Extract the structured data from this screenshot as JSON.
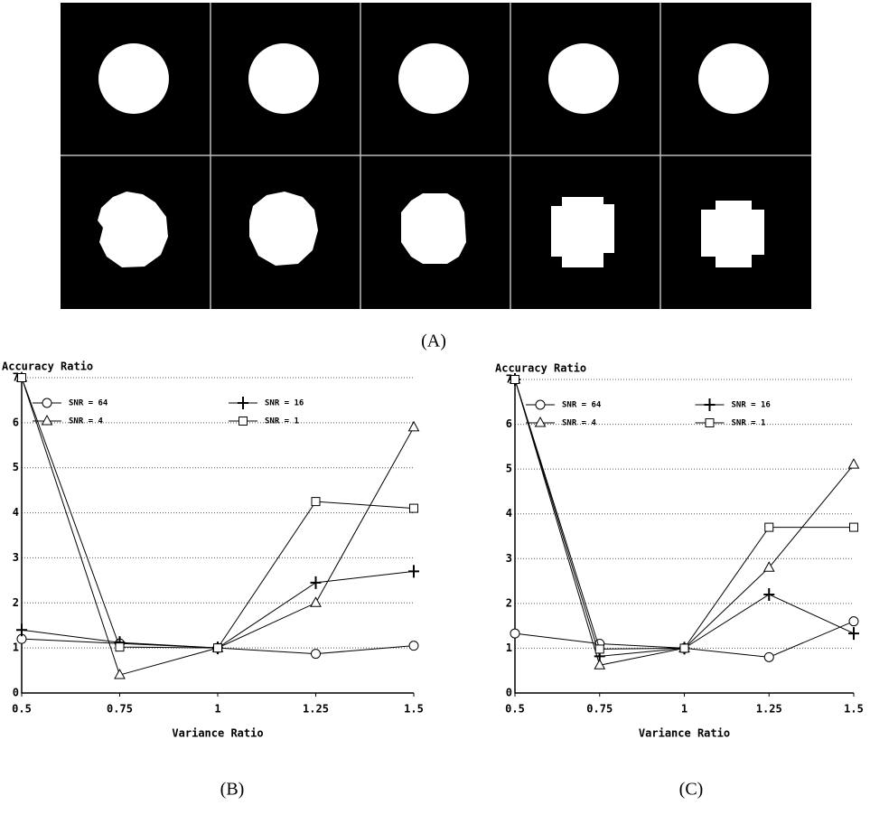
{
  "figure": {
    "panel_a_label": "(A)"
  },
  "chart_data": [
    {
      "type": "line",
      "panel_label": "(B)",
      "title": "Accuracy Ratio",
      "x_label": "Variance Ratio",
      "x": [
        0.5,
        0.75,
        1,
        1.25,
        1.5
      ],
      "xlim": [
        0.5,
        1.5
      ],
      "xticks": [
        0.5,
        0.75,
        1,
        1.25,
        1.5
      ],
      "ylim": [
        0,
        7
      ],
      "yticks": [
        0,
        1,
        2,
        3,
        4,
        5,
        6,
        7
      ],
      "grid": true,
      "series": [
        {
          "name": "SNR = 64",
          "marker": "circle",
          "color": "#000000",
          "values": [
            1.2,
            1.1,
            1.0,
            0.87,
            1.05
          ]
        },
        {
          "name": "SNR = 16",
          "marker": "cross",
          "color": "#000000",
          "values": [
            1.4,
            1.12,
            1.0,
            2.45,
            2.7
          ]
        },
        {
          "name": "SNR = 4",
          "marker": "triangle",
          "color": "#000000",
          "values": [
            7.0,
            0.4,
            1.0,
            2.0,
            5.9
          ]
        },
        {
          "name": "SNR = 1",
          "marker": "square",
          "color": "#000000",
          "values": [
            7.0,
            1.02,
            1.0,
            4.25,
            4.1
          ]
        }
      ]
    },
    {
      "type": "line",
      "panel_label": "(C)",
      "title": "Accuracy Ratio",
      "x_label": "Variance Ratio",
      "x": [
        0.5,
        0.75,
        1,
        1.25,
        1.5
      ],
      "xlim": [
        0.5,
        1.5
      ],
      "xticks": [
        0.5,
        0.75,
        1,
        1.25,
        1.5
      ],
      "ylim": [
        0,
        7
      ],
      "yticks": [
        0,
        1,
        2,
        3,
        4,
        5,
        6,
        7
      ],
      "grid": true,
      "series": [
        {
          "name": "SNR = 64",
          "marker": "circle",
          "color": "#000000",
          "values": [
            1.33,
            1.1,
            1.0,
            0.8,
            1.6
          ]
        },
        {
          "name": "SNR = 16",
          "marker": "cross",
          "color": "#000000",
          "values": [
            7.0,
            0.82,
            1.0,
            2.2,
            1.33
          ]
        },
        {
          "name": "SNR = 4",
          "marker": "triangle",
          "color": "#000000",
          "values": [
            7.0,
            0.62,
            1.0,
            2.8,
            5.1
          ]
        },
        {
          "name": "SNR = 1",
          "marker": "square",
          "color": "#000000",
          "values": [
            7.0,
            0.98,
            1.0,
            3.7,
            3.7
          ]
        }
      ]
    }
  ]
}
